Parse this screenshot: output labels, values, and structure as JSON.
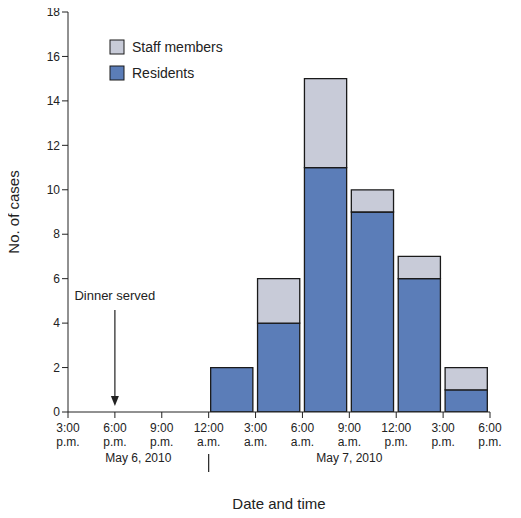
{
  "chart_data": {
    "type": "bar",
    "stacked": true,
    "xlabel": "Date and time",
    "ylabel": "No. of cases",
    "bins": [
      "3:00 p.m.",
      "6:00 p.m.",
      "9:00 p.m.",
      "12:00 a.m.",
      "3:00 a.m.",
      "6:00 a.m.",
      "9:00 a.m.",
      "12:00 p.m.",
      "3:00 p.m.",
      "6:00 p.m."
    ],
    "series": [
      {
        "name": "Residents",
        "color": "#5b7db8",
        "values": [
          0,
          0,
          0,
          2,
          4,
          11,
          9,
          6,
          1
        ]
      },
      {
        "name": "Staff members",
        "color": "#c8cbd8",
        "values": [
          0,
          0,
          0,
          0,
          2,
          4,
          1,
          1,
          1
        ]
      }
    ],
    "date_groups": [
      {
        "label": "May 6, 2010",
        "edges": [
          0,
          3
        ]
      },
      {
        "label": "May 7, 2010",
        "edges": [
          3,
          9
        ]
      }
    ],
    "annotations": [
      {
        "text": "Dinner served",
        "edge": 1
      }
    ],
    "legend": "upper left",
    "ylim": [
      0,
      18
    ],
    "yticks": [
      0,
      2,
      4,
      6,
      8,
      10,
      12,
      14,
      16,
      18
    ],
    "grid": false
  }
}
